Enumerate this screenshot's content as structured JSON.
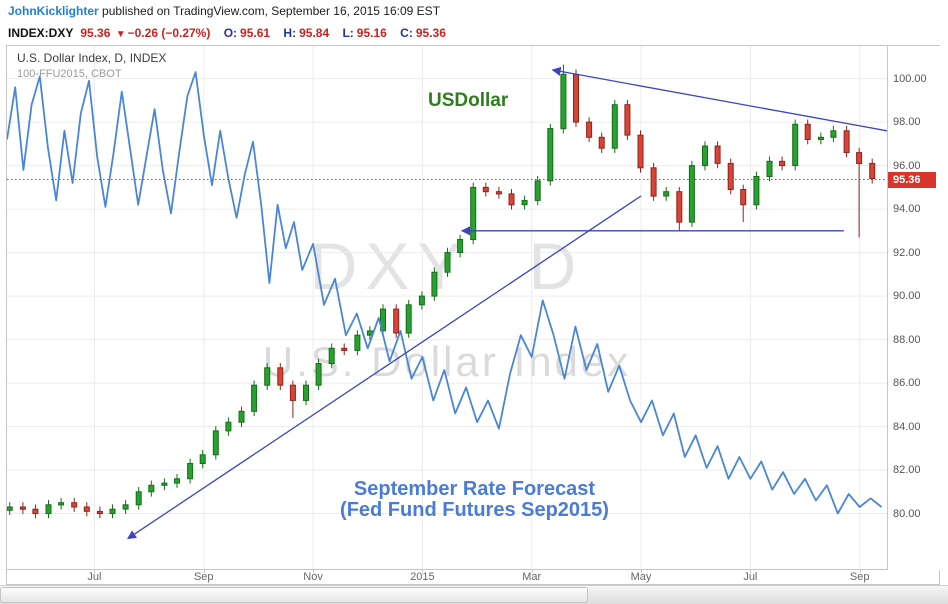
{
  "colors": {
    "author_blue": "#1f7fd4",
    "value_red": "#cc2121",
    "ohlc_label_blue": "#2433a6",
    "candle_up": "#27a22e",
    "candle_up_border": "#156d1a",
    "candle_down": "#d94436",
    "candle_down_border": "#8e231a",
    "fed_line_blue": "#4a86d8",
    "trendline_blue": "#3d43c4",
    "last_price_red": "#d8342c",
    "annotation_green": "#2e7d1f",
    "annotation_blue": "#4a7cd6",
    "watermark_gray": "#e3e3e3"
  },
  "header": {
    "author": "JohnKicklighter",
    "published_text": " published on TradingView.com, September 16, 2015 16:09 EST"
  },
  "quote_bar": {
    "symbol": "INDEX:DXY",
    "price": "95.36",
    "direction_icon": "▼",
    "change": "−0.26 (−0.27%)",
    "ohlc": [
      {
        "label": "O:",
        "value": "95.61"
      },
      {
        "label": "H:",
        "value": "95.84"
      },
      {
        "label": "L:",
        "value": "95.16"
      },
      {
        "label": "C:",
        "value": "95.36"
      }
    ]
  },
  "chart": {
    "legend_line1": "U.S. Dollar Index, D, INDEX",
    "legend_line2": "100-FFU2015, CBOT",
    "watermark_line1": "DXY D",
    "watermark_line2": "U.S. Dollar Index",
    "annotation_usdollar": "USDollar",
    "forecast_line1": "September Rate Forecast",
    "forecast_line2": "(Fed Fund Futures Sep2015)",
    "last_price_label": "95.36"
  },
  "chart_data": {
    "type": "candlestick",
    "title": "U.S. Dollar Index, D, INDEX",
    "overlay": "100-FFU2015, CBOT",
    "x_unit": "months since 2014-06-01 (0 = Jun 2014, 7 = Jan 2015, 15 = Sep 2015)",
    "xlim": [
      -0.6,
      15.5
    ],
    "ylim": [
      77.45,
      101.5
    ],
    "grid": true,
    "legend_position": "top-left",
    "y_ticks": [
      "100.00",
      "98.00",
      "96.00",
      "94.00",
      "92.00",
      "90.00",
      "88.00",
      "86.00",
      "84.00",
      "82.00",
      "80.00"
    ],
    "x_ticks": [
      {
        "t": 1,
        "label": "Jul"
      },
      {
        "t": 3,
        "label": "Sep"
      },
      {
        "t": 5,
        "label": "Nov"
      },
      {
        "t": 7,
        "label": "2015"
      },
      {
        "t": 9,
        "label": "Mar"
      },
      {
        "t": 11,
        "label": "May"
      },
      {
        "t": 13,
        "label": "Jul"
      },
      {
        "t": 15,
        "label": "Sep"
      }
    ],
    "last_price": 95.36,
    "series": [
      {
        "name": "DXY (U.S. Dollar Index), weekly closes read from chart; rows [t, close] or [t, close, high, low]",
        "type": "candlestick",
        "points": [
          [
            -0.55,
            80.3
          ],
          [
            -0.31,
            80.2
          ],
          [
            -0.08,
            80.0
          ],
          [
            0.16,
            80.4
          ],
          [
            0.39,
            80.5
          ],
          [
            0.63,
            80.3
          ],
          [
            0.86,
            80.1
          ],
          [
            1.1,
            80.0
          ],
          [
            1.33,
            80.2
          ],
          [
            1.57,
            80.4
          ],
          [
            1.81,
            81.0
          ],
          [
            2.04,
            81.3
          ],
          [
            2.28,
            81.4
          ],
          [
            2.51,
            81.6
          ],
          [
            2.75,
            82.3
          ],
          [
            2.98,
            82.7
          ],
          [
            3.22,
            83.8
          ],
          [
            3.45,
            84.2
          ],
          [
            3.69,
            84.7
          ],
          [
            3.92,
            85.9
          ],
          [
            4.16,
            86.7
          ],
          [
            4.4,
            85.9
          ],
          [
            4.63,
            85.2,
            null,
            84.4
          ],
          [
            4.87,
            85.9
          ],
          [
            5.1,
            86.9
          ],
          [
            5.34,
            87.6
          ],
          [
            5.57,
            87.5
          ],
          [
            5.81,
            88.2
          ],
          [
            6.04,
            88.4
          ],
          [
            6.28,
            89.4
          ],
          [
            6.52,
            88.3
          ],
          [
            6.75,
            89.6
          ],
          [
            6.99,
            90.0
          ],
          [
            7.22,
            91.1
          ],
          [
            7.46,
            92.0
          ],
          [
            7.69,
            92.6
          ],
          [
            7.93,
            95.0
          ],
          [
            8.16,
            94.8
          ],
          [
            8.4,
            94.7
          ],
          [
            8.63,
            94.2
          ],
          [
            8.87,
            94.4
          ],
          [
            9.11,
            95.3
          ],
          [
            9.34,
            97.7
          ],
          [
            9.58,
            100.2,
            100.65,
            null
          ],
          [
            9.81,
            98.0
          ],
          [
            10.05,
            97.3
          ],
          [
            10.28,
            96.8
          ],
          [
            10.52,
            98.8
          ],
          [
            10.75,
            97.4
          ],
          [
            10.99,
            95.9
          ],
          [
            11.23,
            94.6
          ],
          [
            11.46,
            94.8
          ],
          [
            11.7,
            93.4,
            null,
            93.0
          ],
          [
            11.93,
            96.0
          ],
          [
            12.17,
            96.9
          ],
          [
            12.4,
            96.1
          ],
          [
            12.64,
            94.9
          ],
          [
            12.87,
            94.2,
            null,
            93.4
          ],
          [
            13.11,
            95.5
          ],
          [
            13.35,
            96.2
          ],
          [
            13.58,
            96.0
          ],
          [
            13.82,
            97.9
          ],
          [
            14.05,
            97.2
          ],
          [
            14.29,
            97.3
          ],
          [
            14.52,
            97.6
          ],
          [
            14.76,
            96.6
          ],
          [
            14.99,
            96.1,
            null,
            92.7
          ],
          [
            15.23,
            95.4
          ]
        ]
      },
      {
        "name": "September Rate Forecast (Fed Fund Futures Sep2015), 100-FFU2015 plotted on price scale",
        "type": "line",
        "points": [
          [
            -0.6,
            97.2
          ],
          [
            -0.45,
            99.6
          ],
          [
            -0.3,
            95.8
          ],
          [
            -0.15,
            98.8
          ],
          [
            0,
            100.1
          ],
          [
            0.15,
            96.8
          ],
          [
            0.3,
            94.4
          ],
          [
            0.45,
            97.6
          ],
          [
            0.6,
            95.2
          ],
          [
            0.75,
            98.4
          ],
          [
            0.9,
            99.9
          ],
          [
            1.05,
            96.4
          ],
          [
            1.2,
            94.1
          ],
          [
            1.35,
            96.6
          ],
          [
            1.5,
            99.4
          ],
          [
            1.65,
            96.8
          ],
          [
            1.8,
            94.2
          ],
          [
            1.95,
            96.4
          ],
          [
            2.1,
            98.6
          ],
          [
            2.25,
            95.8
          ],
          [
            2.4,
            93.8
          ],
          [
            2.55,
            96.6
          ],
          [
            2.7,
            99.2
          ],
          [
            2.85,
            100.3
          ],
          [
            3,
            97.4
          ],
          [
            3.15,
            95.1
          ],
          [
            3.3,
            97.6
          ],
          [
            3.45,
            95.4
          ],
          [
            3.6,
            93.6
          ],
          [
            3.75,
            95.6
          ],
          [
            3.9,
            97.1
          ],
          [
            4.05,
            94.2
          ],
          [
            4.2,
            90.6
          ],
          [
            4.35,
            94.2
          ],
          [
            4.5,
            92.2
          ],
          [
            4.65,
            93.4
          ],
          [
            4.8,
            91.2
          ],
          [
            5,
            92.4
          ],
          [
            5.2,
            89.6
          ],
          [
            5.4,
            90.8
          ],
          [
            5.6,
            88.2
          ],
          [
            5.8,
            89.2
          ],
          [
            6,
            87.6
          ],
          [
            6.2,
            89.0
          ],
          [
            6.4,
            87.0
          ],
          [
            6.6,
            88.4
          ],
          [
            6.8,
            86.2
          ],
          [
            7,
            87.2
          ],
          [
            7.2,
            85.2
          ],
          [
            7.4,
            86.6
          ],
          [
            7.6,
            84.6
          ],
          [
            7.8,
            85.8
          ],
          [
            8,
            84.2
          ],
          [
            8.2,
            85.2
          ],
          [
            8.4,
            83.9
          ],
          [
            8.6,
            86.4
          ],
          [
            8.8,
            88.2
          ],
          [
            9,
            87.2
          ],
          [
            9.2,
            89.8
          ],
          [
            9.4,
            88.2
          ],
          [
            9.6,
            86.2
          ],
          [
            9.8,
            88.6
          ],
          [
            10,
            86.6
          ],
          [
            10.2,
            87.8
          ],
          [
            10.4,
            85.6
          ],
          [
            10.6,
            86.8
          ],
          [
            10.8,
            85.2
          ],
          [
            11,
            84.2
          ],
          [
            11.2,
            85.2
          ],
          [
            11.4,
            83.6
          ],
          [
            11.6,
            84.6
          ],
          [
            11.8,
            82.6
          ],
          [
            12,
            83.6
          ],
          [
            12.2,
            82.1
          ],
          [
            12.4,
            83.1
          ],
          [
            12.6,
            81.6
          ],
          [
            12.8,
            82.6
          ],
          [
            13,
            81.6
          ],
          [
            13.2,
            82.4
          ],
          [
            13.4,
            81.1
          ],
          [
            13.6,
            81.9
          ],
          [
            13.8,
            80.9
          ],
          [
            14,
            81.6
          ],
          [
            14.2,
            80.6
          ],
          [
            14.4,
            81.3
          ],
          [
            14.6,
            80.0
          ],
          [
            14.8,
            80.9
          ],
          [
            15,
            80.3
          ],
          [
            15.2,
            80.7
          ],
          [
            15.4,
            80.3
          ]
        ]
      }
    ],
    "trendlines": [
      {
        "x1": 1.61,
        "y1": 78.85,
        "x2": 11.0,
        "y2": 94.6,
        "arrow": "start",
        "note": "ascending support"
      },
      {
        "x1": 9.38,
        "y1": 100.4,
        "x2": 15.5,
        "y2": 97.6,
        "arrow": "start",
        "note": "descending resistance from March peak"
      },
      {
        "x1": 7.72,
        "y1": 93.0,
        "x2": 14.71,
        "y2": 93.0,
        "arrow": "start",
        "note": "horizontal support at 93.00"
      }
    ]
  }
}
